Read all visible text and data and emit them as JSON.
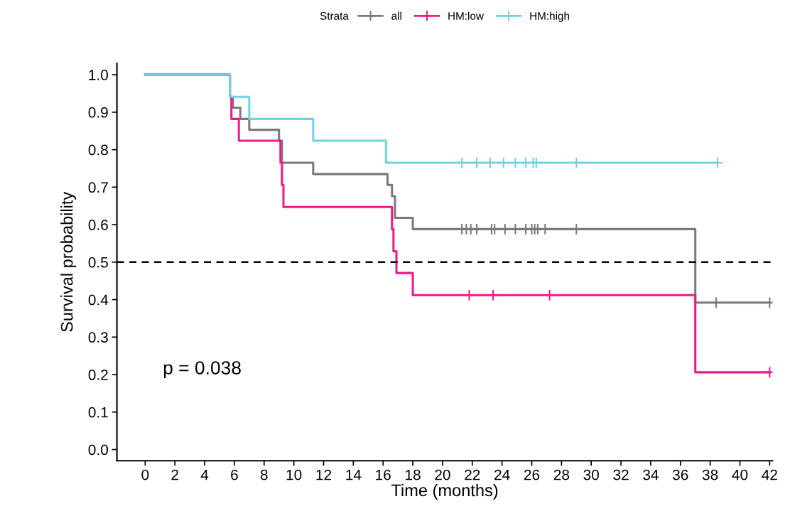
{
  "chart_data": {
    "type": "step",
    "xlabel": "Time (months)",
    "ylabel": "Survival probability",
    "legend_title": "Strata",
    "legend": "top",
    "xlim": [
      -1.9,
      42.2
    ],
    "ylim": [
      -0.03,
      1.03
    ],
    "xticks": [
      0,
      2,
      4,
      6,
      8,
      10,
      12,
      14,
      16,
      18,
      20,
      22,
      24,
      26,
      28,
      30,
      32,
      34,
      36,
      38,
      40,
      42
    ],
    "yticks": [
      {
        "value": 0,
        "label": "0.0"
      },
      0.1,
      0.2,
      0.3,
      0.4,
      0.5,
      0.6,
      0.7,
      0.8,
      0.9,
      {
        "value": 1,
        "label": "1.0"
      }
    ],
    "grid": false,
    "annotations": [
      "p = 0.038"
    ],
    "ref_lines": [
      {
        "axis": "y",
        "value": 0.5,
        "color": "#000000",
        "line_style": "dashed"
      }
    ],
    "series": [
      {
        "name": "all",
        "color": "#7a7a7a",
        "x": [
          0,
          5.7,
          5.9,
          6.4,
          7.0,
          9.0,
          9.2,
          11.3,
          16.3,
          16.6,
          16.8,
          18,
          37,
          42
        ],
        "values": [
          1.0,
          0.941,
          0.912,
          0.882,
          0.853,
          0.824,
          0.765,
          0.735,
          0.706,
          0.676,
          0.618,
          0.588,
          0.392,
          0.392
        ]
      },
      {
        "name": "HM:low",
        "color": "#ee1a8c",
        "x": [
          0,
          5.7,
          5.8,
          6.3,
          9.1,
          9.2,
          9.3,
          16.6,
          16.7,
          16.9,
          18,
          37,
          42
        ],
        "values": [
          1.0,
          0.941,
          0.882,
          0.824,
          0.765,
          0.706,
          0.647,
          0.588,
          0.529,
          0.471,
          0.412,
          0.206,
          0.206
        ]
      },
      {
        "name": "HM:high",
        "color": "#6fd3e3",
        "x": [
          0,
          5.7,
          7.0,
          11.3,
          16.2,
          38.5
        ],
        "values": [
          1.0,
          0.941,
          0.882,
          0.824,
          0.765,
          0.765
        ]
      },
      {
        "type": "scatter",
        "marker": "cross",
        "color": "#7a7a7a",
        "x": [
          21.3,
          21.6,
          21.9,
          22.3,
          23.3,
          23.5,
          24.2,
          24.9,
          25.6,
          26.0,
          26.2,
          26.4,
          26.9,
          29.0,
          38.4,
          42
        ],
        "values": [
          0.588,
          0.588,
          0.588,
          0.588,
          0.588,
          0.588,
          0.588,
          0.588,
          0.588,
          0.588,
          0.588,
          0.588,
          0.588,
          0.588,
          0.392,
          0.392
        ]
      },
      {
        "type": "scatter",
        "marker": "cross",
        "color": "#ee1a8c",
        "x": [
          21.8,
          23.4,
          27.2,
          42
        ],
        "values": [
          0.412,
          0.412,
          0.412,
          0.206
        ]
      },
      {
        "type": "scatter",
        "marker": "cross",
        "color": "#6fd3e3",
        "x": [
          21.3,
          22.3,
          23.2,
          24.1,
          24.9,
          25.6,
          26.1,
          26.3,
          29.0,
          38.5
        ],
        "values": [
          0.765,
          0.765,
          0.765,
          0.765,
          0.765,
          0.765,
          0.765,
          0.765,
          0.765,
          0.765
        ]
      }
    ]
  }
}
